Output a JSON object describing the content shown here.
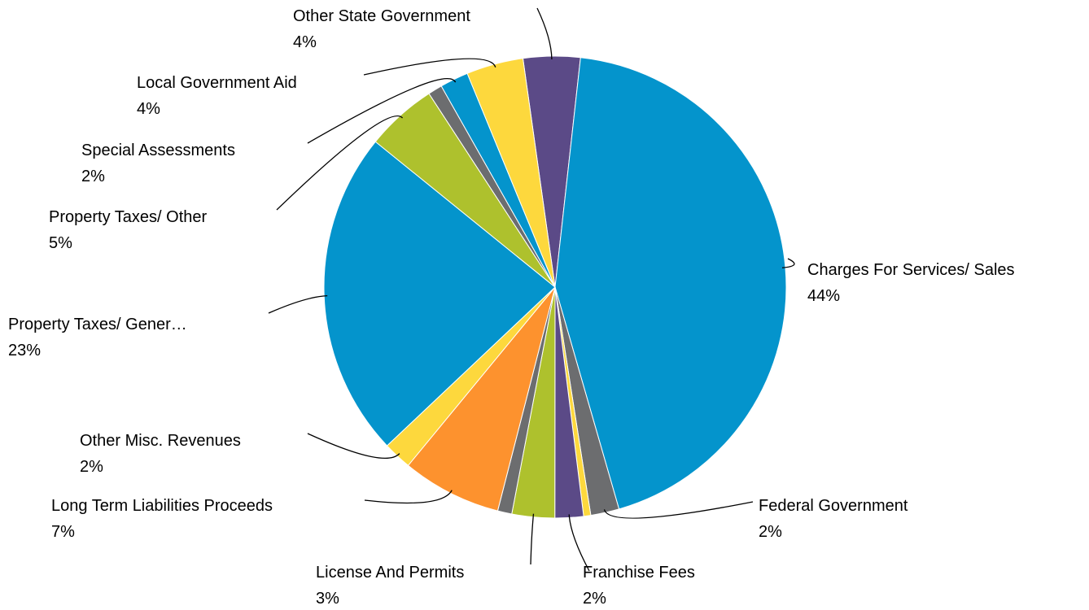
{
  "chart_data": {
    "type": "pie",
    "categories": [
      "Other State Government",
      "Charges For Services/ Sales",
      "Federal Government",
      null,
      "Franchise Fees",
      "License And Permits",
      null,
      "Long Term Liabilities Proceeds",
      "Other Misc. Revenues",
      "Property Taxes/ Gener…",
      "Property Taxes/ Other",
      null,
      "Special Assessments",
      "Local Government Aid"
    ],
    "values": [
      4,
      44,
      2,
      0.5,
      2,
      3,
      1,
      7,
      2,
      23,
      5,
      1,
      2,
      4
    ],
    "value_labels": [
      "4%",
      "44%",
      "2%",
      null,
      "2%",
      "3%",
      null,
      "7%",
      "2%",
      "23%",
      "5%",
      null,
      "2%",
      "4%"
    ],
    "colors": [
      "#5b4a87",
      "#0494cc",
      "#6c6d6f",
      "#fdd83d",
      "#5b4a87",
      "#aec12d",
      "#6c6d6f",
      "#fd922e",
      "#fdd83d",
      "#0494cc",
      "#aec12d",
      "#6c6d6f",
      "#0494cc",
      "#fdd83d"
    ]
  }
}
